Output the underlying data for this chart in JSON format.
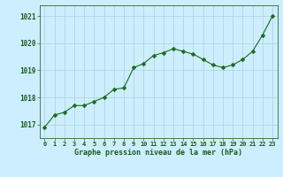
{
  "x": [
    0,
    1,
    2,
    3,
    4,
    5,
    6,
    7,
    8,
    9,
    10,
    11,
    12,
    13,
    14,
    15,
    16,
    17,
    18,
    19,
    20,
    21,
    22,
    23
  ],
  "y": [
    1016.9,
    1017.35,
    1017.45,
    1017.7,
    1017.7,
    1017.85,
    1018.0,
    1018.3,
    1018.35,
    1019.1,
    1019.25,
    1019.55,
    1019.65,
    1019.8,
    1019.7,
    1019.6,
    1019.4,
    1019.2,
    1019.1,
    1019.2,
    1019.4,
    1019.7,
    1020.3,
    1021.0
  ],
  "line_color": "#1a6b1a",
  "marker": "D",
  "marker_size": 2.5,
  "background_color": "#cceeff",
  "grid_color": "#aad4d4",
  "xlabel": "Graphe pression niveau de la mer (hPa)",
  "xlabel_color": "#1a5c1a",
  "tick_color": "#1a5c1a",
  "ylim": [
    1016.5,
    1021.4
  ],
  "xlim": [
    -0.5,
    23.5
  ],
  "yticks": [
    1017,
    1018,
    1019,
    1020,
    1021
  ],
  "xticks": [
    0,
    1,
    2,
    3,
    4,
    5,
    6,
    7,
    8,
    9,
    10,
    11,
    12,
    13,
    14,
    15,
    16,
    17,
    18,
    19,
    20,
    21,
    22,
    23
  ],
  "spine_color": "#336633"
}
